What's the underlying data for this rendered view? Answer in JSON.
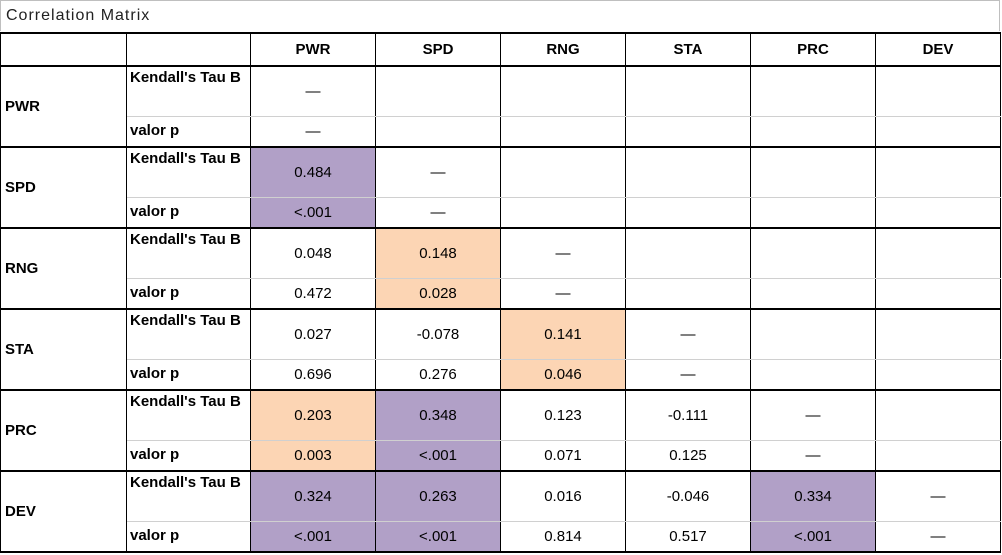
{
  "title": "Correlation Matrix",
  "columns": [
    "PWR",
    "SPD",
    "RNG",
    "STA",
    "PRC",
    "DEV"
  ],
  "stat_labels": {
    "tau": "Kendall's Tau B",
    "p": "valor p"
  },
  "colors": {
    "purple": "#b1a0c7",
    "peach": "#fcd5b4"
  },
  "rows": [
    {
      "label": "PWR",
      "tau": [
        {
          "v": "—",
          "hl": ""
        },
        {
          "v": "",
          "hl": ""
        },
        {
          "v": "",
          "hl": ""
        },
        {
          "v": "",
          "hl": ""
        },
        {
          "v": "",
          "hl": ""
        },
        {
          "v": "",
          "hl": ""
        }
      ],
      "p": [
        {
          "v": "—",
          "hl": ""
        },
        {
          "v": "",
          "hl": ""
        },
        {
          "v": "",
          "hl": ""
        },
        {
          "v": "",
          "hl": ""
        },
        {
          "v": "",
          "hl": ""
        },
        {
          "v": "",
          "hl": ""
        }
      ]
    },
    {
      "label": "SPD",
      "tau": [
        {
          "v": "0.484",
          "hl": "purple"
        },
        {
          "v": "—",
          "hl": ""
        },
        {
          "v": "",
          "hl": ""
        },
        {
          "v": "",
          "hl": ""
        },
        {
          "v": "",
          "hl": ""
        },
        {
          "v": "",
          "hl": ""
        }
      ],
      "p": [
        {
          "v": "<.001",
          "hl": "purple"
        },
        {
          "v": "—",
          "hl": ""
        },
        {
          "v": "",
          "hl": ""
        },
        {
          "v": "",
          "hl": ""
        },
        {
          "v": "",
          "hl": ""
        },
        {
          "v": "",
          "hl": ""
        }
      ]
    },
    {
      "label": "RNG",
      "tau": [
        {
          "v": "0.048",
          "hl": ""
        },
        {
          "v": "0.148",
          "hl": "peach"
        },
        {
          "v": "—",
          "hl": ""
        },
        {
          "v": "",
          "hl": ""
        },
        {
          "v": "",
          "hl": ""
        },
        {
          "v": "",
          "hl": ""
        }
      ],
      "p": [
        {
          "v": "0.472",
          "hl": ""
        },
        {
          "v": "0.028",
          "hl": "peach"
        },
        {
          "v": "—",
          "hl": ""
        },
        {
          "v": "",
          "hl": ""
        },
        {
          "v": "",
          "hl": ""
        },
        {
          "v": "",
          "hl": ""
        }
      ]
    },
    {
      "label": "STA",
      "tau": [
        {
          "v": "0.027",
          "hl": ""
        },
        {
          "v": "-0.078",
          "hl": ""
        },
        {
          "v": "0.141",
          "hl": "peach"
        },
        {
          "v": "—",
          "hl": ""
        },
        {
          "v": "",
          "hl": ""
        },
        {
          "v": "",
          "hl": ""
        }
      ],
      "p": [
        {
          "v": "0.696",
          "hl": ""
        },
        {
          "v": "0.276",
          "hl": ""
        },
        {
          "v": "0.046",
          "hl": "peach"
        },
        {
          "v": "—",
          "hl": ""
        },
        {
          "v": "",
          "hl": ""
        },
        {
          "v": "",
          "hl": ""
        }
      ]
    },
    {
      "label": "PRC",
      "tau": [
        {
          "v": "0.203",
          "hl": "peach"
        },
        {
          "v": "0.348",
          "hl": "purple"
        },
        {
          "v": "0.123",
          "hl": ""
        },
        {
          "v": "-0.111",
          "hl": ""
        },
        {
          "v": "—",
          "hl": ""
        },
        {
          "v": "",
          "hl": ""
        }
      ],
      "p": [
        {
          "v": "0.003",
          "hl": "peach"
        },
        {
          "v": "<.001",
          "hl": "purple"
        },
        {
          "v": "0.071",
          "hl": ""
        },
        {
          "v": "0.125",
          "hl": ""
        },
        {
          "v": "—",
          "hl": ""
        },
        {
          "v": "",
          "hl": ""
        }
      ]
    },
    {
      "label": "DEV",
      "tau": [
        {
          "v": "0.324",
          "hl": "purple"
        },
        {
          "v": "0.263",
          "hl": "purple"
        },
        {
          "v": "0.016",
          "hl": ""
        },
        {
          "v": "-0.046",
          "hl": ""
        },
        {
          "v": "0.334",
          "hl": "purple"
        },
        {
          "v": "—",
          "hl": ""
        }
      ],
      "p": [
        {
          "v": "<.001",
          "hl": "purple"
        },
        {
          "v": "<.001",
          "hl": "purple"
        },
        {
          "v": "0.814",
          "hl": ""
        },
        {
          "v": "0.517",
          "hl": ""
        },
        {
          "v": "<.001",
          "hl": "purple"
        },
        {
          "v": "—",
          "hl": ""
        }
      ]
    }
  ]
}
